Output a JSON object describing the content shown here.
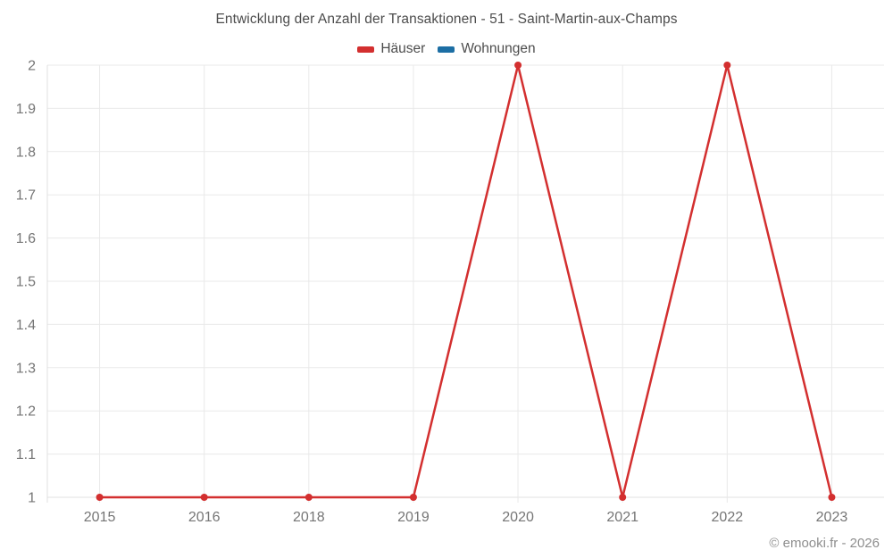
{
  "title": "Entwicklung der Anzahl der Transaktionen - 51 - Saint-Martin-aux-Champs",
  "footer": "© emooki.fr - 2026",
  "colors": {
    "grid": "#e9e9e9",
    "axis": "#e0e0e0",
    "tick_text": "#757575",
    "title_text": "#4c4c4c",
    "footer_text": "#8e8e8e"
  },
  "chart_data": {
    "type": "line",
    "title": "Entwicklung der Anzahl der Transaktionen - 51 - Saint-Martin-aux-Champs",
    "categories": [
      "2015",
      "2016",
      "2018",
      "2019",
      "2020",
      "2021",
      "2022",
      "2023"
    ],
    "series": [
      {
        "name": "Häuser",
        "color": "#d32f2f",
        "values": [
          1,
          1,
          1,
          1,
          2,
          1,
          2,
          1
        ]
      },
      {
        "name": "Wohnungen",
        "color": "#1c6ea4",
        "values": []
      }
    ],
    "xlabel": "",
    "ylabel": "",
    "ylim": [
      1,
      2
    ],
    "ytick_step": 0.1,
    "ytick_labels": [
      "1",
      "1.1",
      "1.2",
      "1.3",
      "1.4",
      "1.5",
      "1.6",
      "1.7",
      "1.8",
      "1.9",
      "2"
    ],
    "grid": true,
    "legend_position": "top",
    "marker_radius": 4,
    "line_width": 2.5
  }
}
